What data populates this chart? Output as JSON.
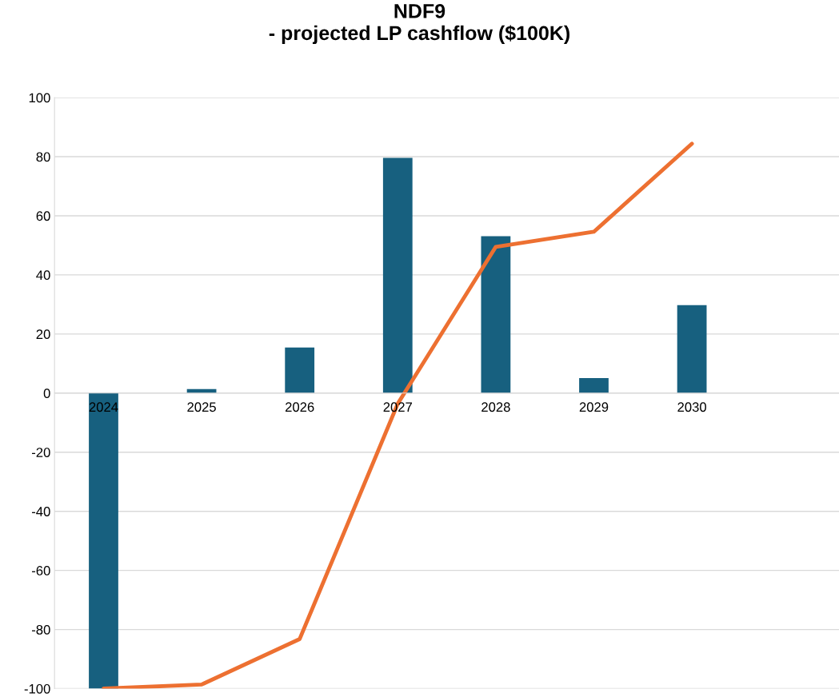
{
  "chart_data": {
    "type": "bar",
    "title": "NDF9\n- projected LP cashflow ($100K)",
    "categories": [
      "2024",
      "2025",
      "2026",
      "2027",
      "2028",
      "2029",
      "2030",
      null
    ],
    "series": [
      {
        "color": "#17607f",
        "values": [
          -100,
          1.4,
          15.4,
          79.6,
          53.1,
          5.1,
          29.8,
          null
        ]
      },
      {
        "type": "line",
        "color": "#ed7031",
        "values": [
          -100,
          -98.6,
          -83.2,
          -3.6,
          49.5,
          54.6,
          84.4,
          null
        ]
      }
    ],
    "ylim": [
      -100,
      100
    ],
    "yticks": [
      -100,
      -80,
      -60,
      -40,
      -20,
      0,
      20,
      40,
      60,
      80,
      100
    ],
    "grid": "y",
    "legend": false,
    "marker": "none",
    "line_style": "solid"
  }
}
